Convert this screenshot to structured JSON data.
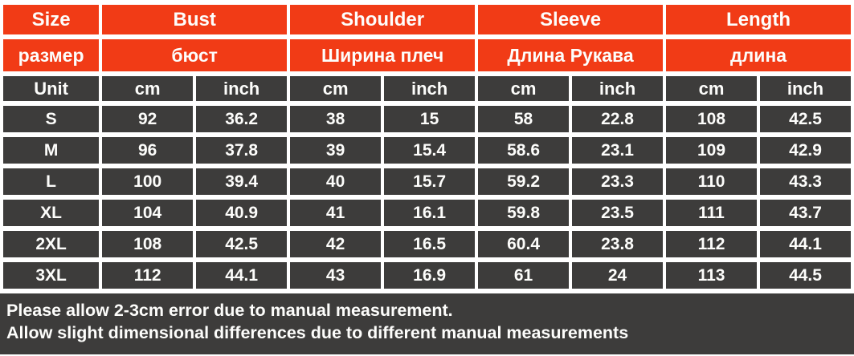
{
  "colors": {
    "header_bg": "#f13b16",
    "cell_bg": "#3d3c3b",
    "text": "#ffffff",
    "page_bg": "#ffffff"
  },
  "table": {
    "header_groups": [
      {
        "en": "Size",
        "ru": "размер"
      },
      {
        "en": "Bust",
        "ru": "бюст"
      },
      {
        "en": "Shoulder",
        "ru": "Ширина плеч"
      },
      {
        "en": "Sleeve",
        "ru": "Длина Рукава"
      },
      {
        "en": "Length",
        "ru": "длина"
      }
    ],
    "unit_row": [
      "Unit",
      "cm",
      "inch",
      "cm",
      "inch",
      "cm",
      "inch",
      "cm",
      "inch"
    ],
    "rows": [
      {
        "size": "S",
        "values": [
          "92",
          "36.2",
          "38",
          "15",
          "58",
          "22.8",
          "108",
          "42.5"
        ]
      },
      {
        "size": "M",
        "values": [
          "96",
          "37.8",
          "39",
          "15.4",
          "58.6",
          "23.1",
          "109",
          "42.9"
        ]
      },
      {
        "size": "L",
        "values": [
          "100",
          "39.4",
          "40",
          "15.7",
          "59.2",
          "23.3",
          "110",
          "43.3"
        ]
      },
      {
        "size": "XL",
        "values": [
          "104",
          "40.9",
          "41",
          "16.1",
          "59.8",
          "23.5",
          "111",
          "43.7"
        ]
      },
      {
        "size": "2XL",
        "values": [
          "108",
          "42.5",
          "42",
          "16.5",
          "60.4",
          "23.8",
          "112",
          "44.1"
        ]
      },
      {
        "size": "3XL",
        "values": [
          "112",
          "44.1",
          "43",
          "16.9",
          "61",
          "24",
          "113",
          "44.5"
        ]
      }
    ]
  },
  "notes": {
    "line1": "Please allow 2-3cm error due to manual measurement.",
    "line2": "Allow slight dimensional differences due to different manual measurements"
  },
  "chart_data": {
    "type": "table",
    "title": "Garment size chart (cm / inch)",
    "columns": [
      "Size",
      "Bust cm",
      "Bust inch",
      "Shoulder cm",
      "Shoulder inch",
      "Sleeve cm",
      "Sleeve inch",
      "Length cm",
      "Length inch"
    ],
    "rows": [
      [
        "S",
        92,
        36.2,
        38,
        15,
        58,
        22.8,
        108,
        42.5
      ],
      [
        "M",
        96,
        37.8,
        39,
        15.4,
        58.6,
        23.1,
        109,
        42.9
      ],
      [
        "L",
        100,
        39.4,
        40,
        15.7,
        59.2,
        23.3,
        110,
        43.3
      ],
      [
        "XL",
        104,
        40.9,
        41,
        16.1,
        59.8,
        23.5,
        111,
        43.7
      ],
      [
        "2XL",
        108,
        42.5,
        42,
        16.5,
        60.4,
        23.8,
        112,
        44.1
      ],
      [
        "3XL",
        112,
        44.1,
        43,
        16.9,
        61,
        24,
        113,
        44.5
      ]
    ],
    "annotations": [
      "Please allow 2-3cm error due to manual measurement.",
      "Allow slight dimensional differences due to different manual measurements"
    ]
  }
}
